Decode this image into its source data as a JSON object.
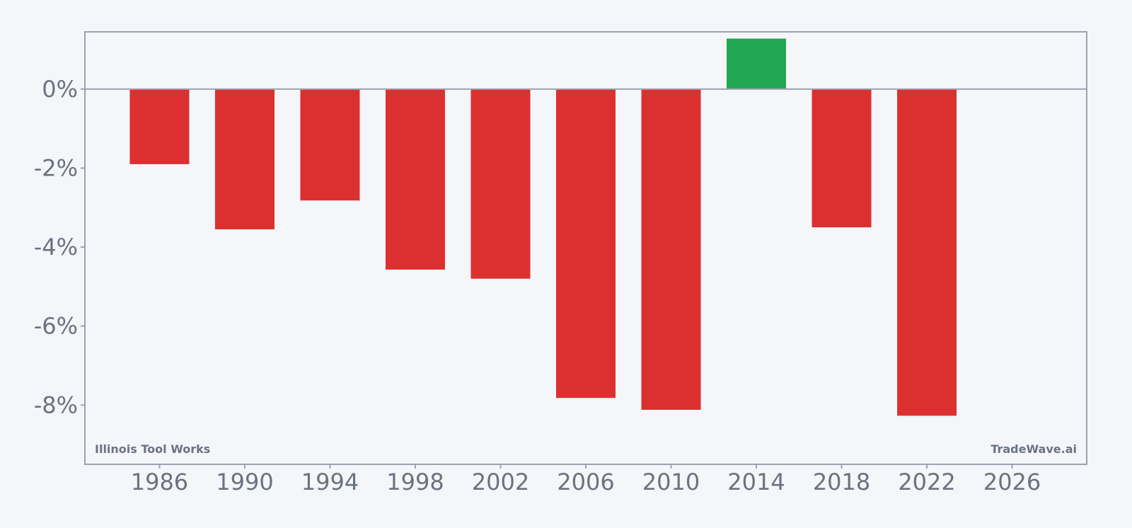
{
  "chart_data": {
    "type": "bar",
    "x": [
      1986,
      1990,
      1994,
      1998,
      2002,
      2006,
      2010,
      2014,
      2018,
      2022
    ],
    "values": [
      -1.9,
      -3.55,
      -2.82,
      -4.57,
      -4.8,
      -7.82,
      -8.12,
      1.28,
      -3.5,
      -8.27
    ],
    "x_ticks": [
      "1986",
      "1990",
      "1994",
      "1998",
      "2002",
      "2006",
      "2010",
      "2014",
      "2018",
      "2022",
      "2026"
    ],
    "y_ticks": [
      "0%",
      "-2%",
      "-4%",
      "-6%",
      "-8%"
    ],
    "xlim": [
      1982.5,
      2029.5
    ],
    "ylim": [
      -9.5,
      1.45
    ],
    "grid": false,
    "colors": {
      "positive": "#22a852",
      "negative": "#dc3030",
      "axis": "#9ca3af",
      "text": "#6b7280",
      "background": "#f4f6f9"
    }
  },
  "watermark_left": "Illinois Tool Works",
  "watermark_right": "TradeWave.ai"
}
